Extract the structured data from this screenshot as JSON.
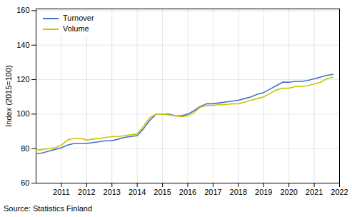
{
  "chart_data": {
    "type": "line",
    "ylabel": "Index (2015=100)",
    "source": "Source: Statistics Finland",
    "x": [
      2010.0,
      2010.25,
      2010.5,
      2010.75,
      2011.0,
      2011.25,
      2011.5,
      2011.75,
      2012.0,
      2012.25,
      2012.5,
      2012.75,
      2013.0,
      2013.25,
      2013.5,
      2013.75,
      2014.0,
      2014.25,
      2014.5,
      2014.75,
      2015.0,
      2015.25,
      2015.5,
      2015.75,
      2016.0,
      2016.25,
      2016.5,
      2016.75,
      2017.0,
      2017.25,
      2017.5,
      2017.75,
      2018.0,
      2018.25,
      2018.5,
      2018.75,
      2019.0,
      2019.25,
      2019.5,
      2019.75,
      2020.0,
      2020.25,
      2020.5,
      2020.75,
      2021.0,
      2021.25,
      2021.5,
      2021.75
    ],
    "series": [
      {
        "name": "Turnover",
        "color": "#4472C4",
        "values": [
          77.0,
          77.5,
          78.5,
          79.5,
          80.5,
          82.0,
          83.0,
          83.0,
          83.0,
          83.5,
          84.0,
          84.5,
          84.5,
          85.5,
          86.5,
          87.0,
          87.5,
          91.5,
          96.5,
          100.0,
          100.0,
          100.0,
          99.0,
          99.0,
          100.0,
          102.0,
          104.5,
          106.0,
          106.0,
          106.5,
          107.0,
          107.5,
          108.0,
          109.0,
          110.0,
          111.5,
          112.5,
          114.5,
          116.5,
          118.5,
          118.5,
          119.0,
          119.0,
          119.5,
          120.5,
          121.5,
          122.5,
          123.0
        ]
      },
      {
        "name": "Volume",
        "color": "#C8C800",
        "values": [
          79.0,
          79.5,
          80.0,
          80.5,
          82.0,
          85.0,
          86.0,
          86.0,
          85.0,
          85.5,
          86.0,
          86.5,
          87.0,
          87.0,
          87.5,
          88.0,
          88.5,
          93.0,
          98.0,
          100.0,
          100.0,
          99.5,
          99.0,
          98.5,
          99.0,
          101.0,
          104.0,
          105.0,
          105.0,
          105.5,
          105.5,
          106.0,
          106.0,
          107.0,
          108.0,
          109.0,
          110.0,
          112.0,
          114.0,
          115.0,
          115.0,
          116.0,
          116.0,
          116.5,
          117.5,
          118.5,
          120.5,
          121.5
        ]
      }
    ],
    "xlim": [
      2010.0,
      2022.0
    ],
    "xticks": [
      2011,
      2012,
      2013,
      2014,
      2015,
      2016,
      2017,
      2018,
      2019,
      2020,
      2021,
      2022
    ],
    "ylim": [
      60,
      161
    ],
    "yticks": [
      60,
      80,
      100,
      120,
      140,
      160
    ],
    "grid": true,
    "legend": "upper left"
  }
}
